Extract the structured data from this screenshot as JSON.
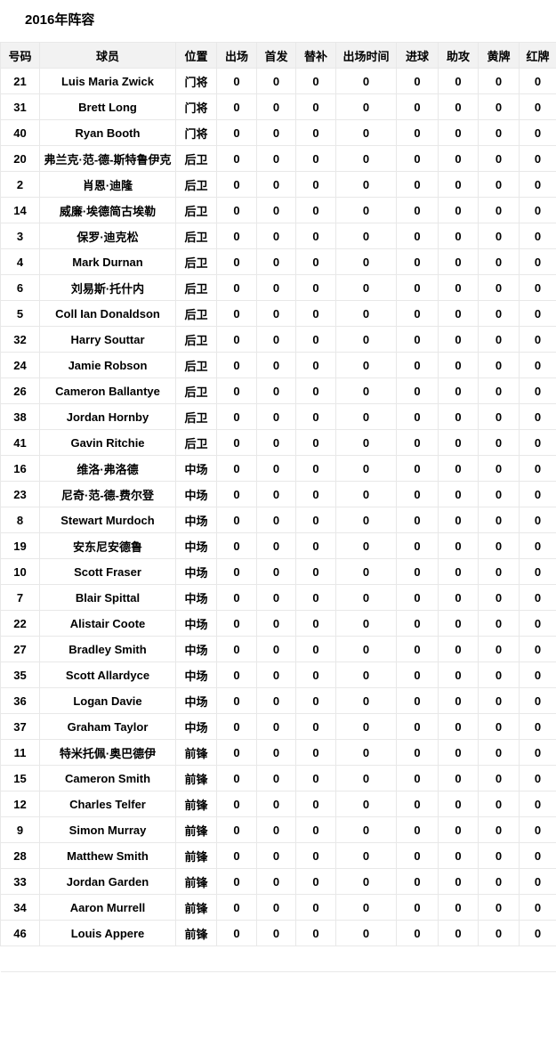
{
  "page": {
    "title": "2016年阵容"
  },
  "colors": {
    "header_background": "#f2f2f2",
    "row_background": "#ffffff",
    "border": "#e8e8e8",
    "text": "#000000"
  },
  "table": {
    "columns": [
      {
        "id": "number",
        "label": "号码"
      },
      {
        "id": "player",
        "label": "球员"
      },
      {
        "id": "position",
        "label": "位置"
      },
      {
        "id": "apps",
        "label": "出场"
      },
      {
        "id": "starts",
        "label": "首发"
      },
      {
        "id": "subs",
        "label": "替补"
      },
      {
        "id": "minutes",
        "label": "出场时间"
      },
      {
        "id": "goals",
        "label": "进球"
      },
      {
        "id": "assists",
        "label": "助攻"
      },
      {
        "id": "yellow",
        "label": "黄牌"
      },
      {
        "id": "red",
        "label": "红牌"
      }
    ],
    "rows": [
      [
        "21",
        "Luis Maria Zwick",
        "门将",
        "0",
        "0",
        "0",
        "0",
        "0",
        "0",
        "0",
        "0"
      ],
      [
        "31",
        "Brett Long",
        "门将",
        "0",
        "0",
        "0",
        "0",
        "0",
        "0",
        "0",
        "0"
      ],
      [
        "40",
        "Ryan Booth",
        "门将",
        "0",
        "0",
        "0",
        "0",
        "0",
        "0",
        "0",
        "0"
      ],
      [
        "20",
        "弗兰克·范-德-斯特鲁伊克",
        "后卫",
        "0",
        "0",
        "0",
        "0",
        "0",
        "0",
        "0",
        "0"
      ],
      [
        "2",
        "肖恩·迪隆",
        "后卫",
        "0",
        "0",
        "0",
        "0",
        "0",
        "0",
        "0",
        "0"
      ],
      [
        "14",
        "威廉·埃德简古埃勒",
        "后卫",
        "0",
        "0",
        "0",
        "0",
        "0",
        "0",
        "0",
        "0"
      ],
      [
        "3",
        "保罗·迪克松",
        "后卫",
        "0",
        "0",
        "0",
        "0",
        "0",
        "0",
        "0",
        "0"
      ],
      [
        "4",
        "Mark Durnan",
        "后卫",
        "0",
        "0",
        "0",
        "0",
        "0",
        "0",
        "0",
        "0"
      ],
      [
        "6",
        "刘易斯·托什内",
        "后卫",
        "0",
        "0",
        "0",
        "0",
        "0",
        "0",
        "0",
        "0"
      ],
      [
        "5",
        "Coll Ian Donaldson",
        "后卫",
        "0",
        "0",
        "0",
        "0",
        "0",
        "0",
        "0",
        "0"
      ],
      [
        "32",
        "Harry Souttar",
        "后卫",
        "0",
        "0",
        "0",
        "0",
        "0",
        "0",
        "0",
        "0"
      ],
      [
        "24",
        "Jamie Robson",
        "后卫",
        "0",
        "0",
        "0",
        "0",
        "0",
        "0",
        "0",
        "0"
      ],
      [
        "26",
        "Cameron Ballantye",
        "后卫",
        "0",
        "0",
        "0",
        "0",
        "0",
        "0",
        "0",
        "0"
      ],
      [
        "38",
        "Jordan Hornby",
        "后卫",
        "0",
        "0",
        "0",
        "0",
        "0",
        "0",
        "0",
        "0"
      ],
      [
        "41",
        "Gavin Ritchie",
        "后卫",
        "0",
        "0",
        "0",
        "0",
        "0",
        "0",
        "0",
        "0"
      ],
      [
        "16",
        "维洛·弗洛德",
        "中场",
        "0",
        "0",
        "0",
        "0",
        "0",
        "0",
        "0",
        "0"
      ],
      [
        "23",
        "尼奇·范-德-费尔登",
        "中场",
        "0",
        "0",
        "0",
        "0",
        "0",
        "0",
        "0",
        "0"
      ],
      [
        "8",
        "Stewart Murdoch",
        "中场",
        "0",
        "0",
        "0",
        "0",
        "0",
        "0",
        "0",
        "0"
      ],
      [
        "19",
        "安东尼安德鲁",
        "中场",
        "0",
        "0",
        "0",
        "0",
        "0",
        "0",
        "0",
        "0"
      ],
      [
        "10",
        "Scott Fraser",
        "中场",
        "0",
        "0",
        "0",
        "0",
        "0",
        "0",
        "0",
        "0"
      ],
      [
        "7",
        "Blair Spittal",
        "中场",
        "0",
        "0",
        "0",
        "0",
        "0",
        "0",
        "0",
        "0"
      ],
      [
        "22",
        "Alistair Coote",
        "中场",
        "0",
        "0",
        "0",
        "0",
        "0",
        "0",
        "0",
        "0"
      ],
      [
        "27",
        "Bradley Smith",
        "中场",
        "0",
        "0",
        "0",
        "0",
        "0",
        "0",
        "0",
        "0"
      ],
      [
        "35",
        "Scott Allardyce",
        "中场",
        "0",
        "0",
        "0",
        "0",
        "0",
        "0",
        "0",
        "0"
      ],
      [
        "36",
        "Logan Davie",
        "中场",
        "0",
        "0",
        "0",
        "0",
        "0",
        "0",
        "0",
        "0"
      ],
      [
        "37",
        "Graham Taylor",
        "中场",
        "0",
        "0",
        "0",
        "0",
        "0",
        "0",
        "0",
        "0"
      ],
      [
        "11",
        "特米托佩·奥巴德伊",
        "前锋",
        "0",
        "0",
        "0",
        "0",
        "0",
        "0",
        "0",
        "0"
      ],
      [
        "15",
        "Cameron Smith",
        "前锋",
        "0",
        "0",
        "0",
        "0",
        "0",
        "0",
        "0",
        "0"
      ],
      [
        "12",
        "Charles Telfer",
        "前锋",
        "0",
        "0",
        "0",
        "0",
        "0",
        "0",
        "0",
        "0"
      ],
      [
        "9",
        "Simon Murray",
        "前锋",
        "0",
        "0",
        "0",
        "0",
        "0",
        "0",
        "0",
        "0"
      ],
      [
        "28",
        "Matthew Smith",
        "前锋",
        "0",
        "0",
        "0",
        "0",
        "0",
        "0",
        "0",
        "0"
      ],
      [
        "33",
        "Jordan Garden",
        "前锋",
        "0",
        "0",
        "0",
        "0",
        "0",
        "0",
        "0",
        "0"
      ],
      [
        "34",
        "Aaron Murrell",
        "前锋",
        "0",
        "0",
        "0",
        "0",
        "0",
        "0",
        "0",
        "0"
      ],
      [
        "46",
        "Louis Appere",
        "前锋",
        "0",
        "0",
        "0",
        "0",
        "0",
        "0",
        "0",
        "0"
      ]
    ]
  }
}
